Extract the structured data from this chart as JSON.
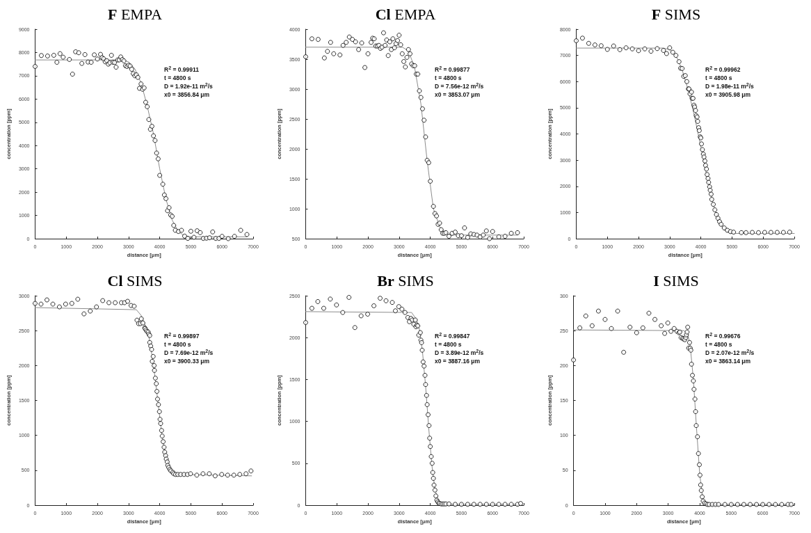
{
  "chart_data": [
    {
      "type": "scatter",
      "title": "F EMPA",
      "xlabel": "distance [μm]",
      "ylabel": "concentration [ppm]",
      "marker": "circle",
      "annotations": [
        "R$^{2}$ = 0.99911",
        "t = 4800 s",
        "D = 1.92e-11 m$^{2}$/s",
        "x0 = 3856.84 μm"
      ],
      "xlim": [
        0,
        7000
      ],
      "xticks": [
        0,
        1000,
        2000,
        3000,
        4000,
        5000,
        6000,
        7000
      ],
      "ylim": [
        0,
        9000
      ],
      "yticks": [
        0,
        1000,
        2000,
        3000,
        4000,
        5000,
        6000,
        7000,
        8000,
        9000
      ],
      "series": [
        {
          "color": "#000000",
          "x": [
            0,
            200,
            400,
            600,
            700,
            800,
            900,
            1100,
            1200,
            1300,
            1400,
            1500,
            1600,
            1700,
            1800,
            1900,
            2000,
            2100,
            2150,
            2200,
            2250,
            2300,
            2350,
            2400,
            2450,
            2500,
            2550,
            2600,
            2650,
            2700,
            2750,
            2800,
            2850,
            2900,
            2950,
            3000,
            3050,
            3100,
            3150,
            3200,
            3250,
            3300,
            3350,
            3400,
            3450,
            3500,
            3550,
            3600,
            3650,
            3700,
            3750,
            3800,
            3850,
            3900,
            3950,
            4000,
            4100,
            4150,
            4200,
            4250,
            4300,
            4350,
            4400,
            4450,
            4500,
            4600,
            4700,
            4800,
            4900,
            5000,
            5100,
            5200,
            5300,
            5400,
            5500,
            5600,
            5700,
            5800,
            5900,
            6000,
            6200,
            6400,
            6600,
            6800
          ],
          "values": [
            7400,
            7870,
            7850,
            7880,
            7580,
            7950,
            7800,
            7700,
            7070,
            8030,
            7990,
            7530,
            7910,
            7590,
            7580,
            7900,
            7720,
            7920,
            7780,
            7730,
            7600,
            7650,
            7500,
            7560,
            7880,
            7580,
            7570,
            7370,
            7680,
            7680,
            7810,
            7700,
            7640,
            7430,
            7400,
            7450,
            7420,
            7280,
            7090,
            7000,
            7040,
            6930,
            6460,
            6650,
            6420,
            6480,
            5860,
            5670,
            5120,
            4700,
            4830,
            4420,
            4220,
            3680,
            3430,
            2720,
            2340,
            1880,
            1720,
            1200,
            1330,
            1020,
            960,
            570,
            360,
            310,
            360,
            110,
            10,
            320,
            60,
            340,
            260,
            10,
            20,
            40,
            290,
            10,
            10,
            100,
            0,
            100,
            360,
            180
          ]
        },
        {
          "type": "line",
          "color": "#8c8c8c",
          "marker": "none",
          "x": [
            0,
            2800,
            3000,
            3200,
            3400,
            3600,
            3800,
            4000,
            4200,
            4400,
            4600,
            4800,
            5000,
            6800
          ],
          "values": [
            7680,
            7680,
            7600,
            7300,
            6700,
            5700,
            4500,
            3000,
            1700,
            800,
            300,
            120,
            80,
            80
          ]
        }
      ]
    },
    {
      "type": "scatter",
      "title": "Cl EMPA",
      "xlabel": "distance [μm]",
      "ylabel": "concentration [ppm]",
      "marker": "circle",
      "annotations": [
        "R$^{2}$ = 0.99877",
        "t = 4800 s",
        "D = 7.56e-12 m$^{2}$/s",
        "x0 = 3853.07 μm"
      ],
      "xlim": [
        0,
        7000
      ],
      "xticks": [
        0,
        1000,
        2000,
        3000,
        4000,
        5000,
        6000,
        7000
      ],
      "ylim": [
        500,
        4000
      ],
      "yticks": [
        500,
        1000,
        1500,
        2000,
        2500,
        3000,
        3500,
        4000
      ],
      "series": [
        {
          "color": "#000000",
          "x": [
            0,
            200,
            400,
            600,
            700,
            800,
            900,
            1100,
            1200,
            1300,
            1400,
            1500,
            1600,
            1700,
            1800,
            1900,
            2000,
            2100,
            2150,
            2200,
            2250,
            2300,
            2350,
            2400,
            2450,
            2500,
            2550,
            2600,
            2650,
            2700,
            2750,
            2800,
            2850,
            2900,
            2950,
            3000,
            3050,
            3100,
            3150,
            3200,
            3250,
            3300,
            3350,
            3400,
            3450,
            3500,
            3550,
            3600,
            3650,
            3700,
            3750,
            3800,
            3850,
            3900,
            3950,
            4000,
            4100,
            4150,
            4200,
            4250,
            4300,
            4350,
            4400,
            4450,
            4500,
            4600,
            4700,
            4800,
            4900,
            5000,
            5100,
            5200,
            5300,
            5400,
            5500,
            5600,
            5700,
            5800,
            5900,
            6000,
            6200,
            6400,
            6600,
            6800
          ],
          "values": [
            3540,
            3840,
            3830,
            3520,
            3630,
            3780,
            3590,
            3570,
            3730,
            3780,
            3870,
            3830,
            3790,
            3660,
            3770,
            3360,
            3590,
            3780,
            3850,
            3840,
            3720,
            3720,
            3730,
            3680,
            3700,
            3940,
            3730,
            3820,
            3560,
            3790,
            3660,
            3840,
            3690,
            3760,
            3810,
            3900,
            3740,
            3590,
            3460,
            3370,
            3530,
            3660,
            3590,
            3420,
            3390,
            3390,
            3250,
            3250,
            2970,
            2860,
            2670,
            2480,
            2200,
            1810,
            1770,
            1460,
            1040,
            920,
            880,
            740,
            760,
            650,
            590,
            590,
            600,
            540,
            590,
            610,
            550,
            550,
            680,
            520,
            580,
            570,
            560,
            530,
            560,
            630,
            500,
            620,
            530,
            540,
            590,
            600
          ]
        },
        {
          "type": "line",
          "color": "#8c8c8c",
          "marker": "none",
          "x": [
            0,
            3100,
            3300,
            3500,
            3700,
            3900,
            4100,
            4300,
            4500,
            4700,
            6800
          ],
          "values": [
            3700,
            3700,
            3640,
            3350,
            2750,
            1800,
            1000,
            700,
            580,
            560,
            560
          ]
        }
      ]
    },
    {
      "type": "scatter",
      "title": "F SIMS",
      "xlabel": "distance [μm]",
      "ylabel": "concentration [ppm]",
      "marker": "circle",
      "annotations": [
        "R$^{2}$ = 0.99962",
        "t = 4800 s",
        "D = 1.98e-11 m$^{2}$/s",
        "x0 = 3905.98 μm"
      ],
      "xlim": [
        0,
        7000
      ],
      "xticks": [
        0,
        1000,
        2000,
        3000,
        4000,
        5000,
        6000,
        7000
      ],
      "ylim": [
        0,
        8000
      ],
      "yticks": [
        0,
        1000,
        2000,
        3000,
        4000,
        5000,
        6000,
        7000,
        8000
      ],
      "series": [
        {
          "color": "#000000",
          "x": [
            0,
            200,
            400,
            600,
            800,
            1000,
            1200,
            1400,
            1600,
            1800,
            2000,
            2200,
            2400,
            2600,
            2800,
            2900,
            3000,
            3100,
            3200,
            3300,
            3350,
            3400,
            3450,
            3500,
            3550,
            3600,
            3620,
            3650,
            3700,
            3720,
            3750,
            3780,
            3800,
            3830,
            3850,
            3880,
            3900,
            3930,
            3950,
            3980,
            4000,
            4020,
            4050,
            4080,
            4100,
            4130,
            4150,
            4180,
            4200,
            4230,
            4250,
            4280,
            4300,
            4330,
            4350,
            4400,
            4450,
            4500,
            4550,
            4600,
            4650,
            4750,
            4850,
            4950,
            5050,
            5300,
            5450,
            5650,
            5850,
            6050,
            6250,
            6450,
            6650,
            6850
          ],
          "values": [
            7560,
            7660,
            7460,
            7400,
            7370,
            7230,
            7360,
            7220,
            7290,
            7250,
            7180,
            7250,
            7160,
            7260,
            7190,
            7070,
            7290,
            7120,
            7000,
            6760,
            6510,
            6500,
            6200,
            6230,
            6000,
            5720,
            5720,
            5530,
            5600,
            5360,
            5360,
            5100,
            5030,
            4900,
            4700,
            4650,
            4480,
            4240,
            4130,
            3890,
            3850,
            3620,
            3400,
            3230,
            3120,
            2970,
            2800,
            2660,
            2450,
            2300,
            2150,
            1980,
            1850,
            1700,
            1500,
            1310,
            1100,
            920,
            780,
            650,
            550,
            410,
            320,
            270,
            250,
            230,
            230,
            240,
            230,
            240,
            240,
            240,
            240,
            250
          ]
        },
        {
          "type": "line",
          "color": "#8c8c8c",
          "marker": "none",
          "x": [
            0,
            2800,
            3000,
            3200,
            3400,
            3600,
            3800,
            4000,
            4200,
            4400,
            4600,
            4800,
            5000,
            7000
          ],
          "values": [
            7280,
            7280,
            7220,
            7000,
            6450,
            5650,
            4650,
            3500,
            2350,
            1300,
            600,
            280,
            200,
            200
          ]
        }
      ]
    },
    {
      "type": "scatter",
      "title": "Cl SIMS",
      "xlabel": "distance [μm]",
      "ylabel": "concentration [ppm]",
      "marker": "circle",
      "annotations": [
        "R$^{2}$ = 0.99897",
        "t = 4800 s",
        "D = 7.69e-12 m$^{2}$/s",
        "x0 = 3900.33 μm"
      ],
      "xlim": [
        0,
        7000
      ],
      "xticks": [
        0,
        1000,
        2000,
        3000,
        4000,
        5000,
        6000,
        7000
      ],
      "ylim": [
        0,
        3000
      ],
      "yticks": [
        0,
        500,
        1000,
        1500,
        2000,
        2500,
        3000
      ],
      "series": [
        {
          "color": "#000000",
          "x": [
            0,
            190,
            380,
            570,
            780,
            980,
            1180,
            1370,
            1570,
            1770,
            1970,
            2170,
            2370,
            2570,
            2770,
            2870,
            2970,
            3080,
            3180,
            3270,
            3320,
            3380,
            3410,
            3460,
            3520,
            3530,
            3560,
            3590,
            3630,
            3650,
            3680,
            3680,
            3710,
            3740,
            3760,
            3790,
            3820,
            3830,
            3860,
            3890,
            3910,
            3930,
            3960,
            3990,
            4010,
            4030,
            4060,
            4080,
            4110,
            4140,
            4160,
            4190,
            4210,
            4240,
            4260,
            4290,
            4330,
            4360,
            4420,
            4450,
            4510,
            4580,
            4670,
            4780,
            4890,
            4990,
            5190,
            5390,
            5590,
            5780,
            5990,
            6180,
            6380,
            6570,
            6770,
            6930
          ],
          "values": [
            2890,
            2880,
            2940,
            2880,
            2840,
            2880,
            2890,
            2950,
            2740,
            2780,
            2840,
            2930,
            2900,
            2900,
            2900,
            2900,
            2920,
            2860,
            2850,
            2650,
            2600,
            2600,
            2670,
            2610,
            2540,
            2530,
            2510,
            2490,
            2480,
            2450,
            2430,
            2330,
            2280,
            2230,
            2060,
            2130,
            2000,
            1930,
            1820,
            1740,
            1630,
            1520,
            1440,
            1340,
            1230,
            1170,
            1070,
            990,
            910,
            830,
            760,
            710,
            660,
            620,
            570,
            540,
            510,
            490,
            470,
            450,
            440,
            440,
            440,
            440,
            440,
            450,
            430,
            450,
            450,
            420,
            440,
            430,
            430,
            440,
            450,
            490
          ]
        },
        {
          "type": "line",
          "color": "#8c8c8c",
          "marker": "none",
          "x": [
            0,
            3250,
            3400,
            3550,
            3650,
            3750,
            3850,
            3950,
            4050,
            4150,
            4250,
            4350,
            4450,
            4600,
            6950
          ],
          "values": [
            2830,
            2800,
            2720,
            2560,
            2420,
            2150,
            1830,
            1450,
            1080,
            780,
            610,
            500,
            460,
            440,
            420
          ]
        }
      ]
    },
    {
      "type": "scatter",
      "title": "Br SIMS",
      "xlabel": "distance [μm]",
      "ylabel": "concentration [ppm]",
      "marker": "circle",
      "annotations": [
        "R$^{2}$ = 0.99847",
        "t = 4800 s",
        "D = 3.89e-12 m$^{2}$/s",
        "x0 = 3887.16 μm"
      ],
      "xlim": [
        0,
        7000
      ],
      "xticks": [
        0,
        1000,
        2000,
        3000,
        4000,
        5000,
        6000,
        7000
      ],
      "ylim": [
        0,
        2500
      ],
      "yticks": [
        0,
        500,
        1000,
        1500,
        2000,
        2500
      ],
      "series": [
        {
          "color": "#000000",
          "x": [
            0,
            200,
            390,
            580,
            790,
            990,
            1190,
            1390,
            1580,
            1780,
            1990,
            2190,
            2390,
            2580,
            2780,
            2880,
            2990,
            3090,
            3190,
            3280,
            3330,
            3380,
            3420,
            3470,
            3520,
            3540,
            3570,
            3600,
            3630,
            3680,
            3700,
            3720,
            3740,
            3770,
            3800,
            3830,
            3850,
            3880,
            3900,
            3930,
            3960,
            3980,
            4000,
            4030,
            4060,
            4080,
            4100,
            4120,
            4150,
            4180,
            4210,
            4240,
            4270,
            4300,
            4350,
            4400,
            4450,
            4500,
            4600,
            4800,
            5000,
            5200,
            5400,
            5600,
            5800,
            6000,
            6200,
            6400,
            6600,
            6800,
            6900
          ],
          "values": [
            2180,
            2350,
            2430,
            2350,
            2460,
            2390,
            2300,
            2480,
            2120,
            2260,
            2280,
            2380,
            2470,
            2440,
            2420,
            2320,
            2370,
            2340,
            2300,
            2240,
            2190,
            2230,
            2210,
            2160,
            2210,
            2130,
            2150,
            2140,
            2030,
            2060,
            1970,
            1940,
            1850,
            1710,
            1660,
            1550,
            1440,
            1310,
            1200,
            1080,
            950,
            800,
            700,
            580,
            500,
            390,
            320,
            240,
            180,
            110,
            60,
            40,
            25,
            20,
            15,
            15,
            15,
            15,
            15,
            10,
            10,
            10,
            10,
            10,
            10,
            10,
            10,
            10,
            10,
            10,
            20
          ]
        },
        {
          "type": "line",
          "color": "#8c8c8c",
          "marker": "none",
          "x": [
            0,
            3400,
            3550,
            3650,
            3750,
            3850,
            3950,
            4050,
            4150,
            4250,
            4350,
            4450,
            6950
          ],
          "values": [
            2310,
            2300,
            2220,
            2100,
            1830,
            1420,
            920,
            480,
            190,
            60,
            20,
            10,
            10
          ]
        }
      ]
    },
    {
      "type": "scatter",
      "title": "I SIMS",
      "xlabel": "distance [μm]",
      "ylabel": "concentration [ppm]",
      "marker": "circle",
      "annotations": [
        "R$^{2}$ = 0.99676",
        "t = 4800 s",
        "D = 2.07e-12 m$^{2}$/s",
        "x0 = 3863.14 μm"
      ],
      "xlim": [
        0,
        7000
      ],
      "xticks": [
        0,
        1000,
        2000,
        3000,
        4000,
        5000,
        6000,
        7000
      ],
      "ylim": [
        0,
        300
      ],
      "yticks": [
        0,
        50,
        100,
        150,
        200,
        250,
        300
      ],
      "series": [
        {
          "color": "#000000",
          "x": [
            0,
            200,
            390,
            590,
            790,
            1000,
            1200,
            1400,
            1590,
            1790,
            2000,
            2200,
            2390,
            2580,
            2780,
            2890,
            2990,
            3090,
            3190,
            3280,
            3340,
            3370,
            3410,
            3460,
            3490,
            3530,
            3560,
            3580,
            3600,
            3620,
            3650,
            3680,
            3700,
            3720,
            3740,
            3770,
            3800,
            3820,
            3850,
            3870,
            3890,
            3930,
            3960,
            3990,
            4010,
            4030,
            4050,
            4080,
            4110,
            4150,
            4200,
            4250,
            4300,
            4400,
            4500,
            4600,
            4800,
            5000,
            5200,
            5400,
            5600,
            5800,
            6000,
            6200,
            6400,
            6600,
            6800,
            6900
          ],
          "values": [
            208,
            254,
            271,
            257,
            278,
            266,
            253,
            278,
            219,
            255,
            247,
            254,
            275,
            266,
            257,
            246,
            261,
            249,
            253,
            249,
            247,
            248,
            240,
            239,
            238,
            237,
            240,
            244,
            248,
            255,
            225,
            233,
            225,
            222,
            202,
            186,
            178,
            166,
            152,
            134,
            114,
            98,
            74,
            58,
            43,
            29,
            21,
            12,
            6,
            3,
            2,
            1,
            1,
            1,
            1,
            1,
            1,
            1,
            1,
            1,
            1,
            1,
            1,
            1,
            1,
            1,
            1,
            1
          ]
        },
        {
          "type": "line",
          "color": "#8c8c8c",
          "marker": "none",
          "x": [
            0,
            3500,
            3620,
            3700,
            3800,
            3900,
            4000,
            4100,
            4200,
            6950
          ],
          "values": [
            251,
            250,
            245,
            228,
            180,
            110,
            45,
            8,
            1,
            1
          ]
        }
      ]
    }
  ]
}
